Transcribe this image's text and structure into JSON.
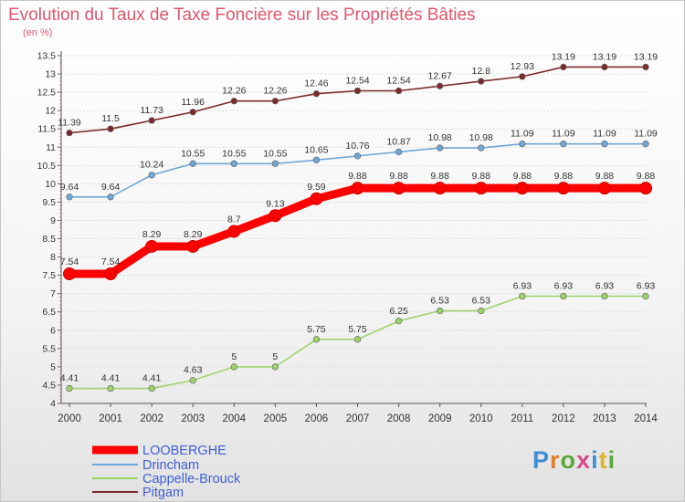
{
  "title": "Evolution du Taux de Taxe Foncière sur les Propriétés Bâties",
  "unit": "(en %)",
  "logo": [
    "P",
    "r",
    "o",
    "x",
    "i",
    "t",
    "i"
  ],
  "chart_data": {
    "type": "line",
    "x": [
      "2000",
      "2001",
      "2002",
      "2003",
      "2004",
      "2005",
      "2006",
      "2007",
      "2008",
      "2009",
      "2010",
      "2011",
      "2012",
      "2013",
      "2014"
    ],
    "ylim": [
      4,
      13.5
    ],
    "yticks": [
      "4",
      "4.5",
      "5",
      "5.5",
      "6",
      "6.5",
      "7",
      "7.5",
      "8",
      "8.5",
      "9",
      "9.5",
      "10",
      "10.5",
      "11",
      "11.5",
      "12",
      "12.5",
      "13",
      "13.5"
    ],
    "legend_position": "bottom-left",
    "series": [
      {
        "name": "LOOBERGHE",
        "color": "#ff0000",
        "values": [
          7.54,
          7.54,
          8.29,
          8.29,
          8.7,
          9.13,
          9.59,
          9.88,
          9.88,
          9.88,
          9.88,
          9.88,
          9.88,
          9.88,
          9.88
        ],
        "labels": [
          "7.54",
          "7.54",
          "8.29",
          "8.29",
          "8.7",
          "9.13",
          "9.59",
          "9.88",
          "9.88",
          "9.88",
          "9.88",
          "9.88",
          "9.88",
          "9.88",
          "9.88"
        ]
      },
      {
        "name": "Drincham",
        "color": "#6fa8d8",
        "values": [
          9.64,
          9.64,
          10.24,
          10.55,
          10.55,
          10.55,
          10.65,
          10.76,
          10.87,
          10.98,
          10.98,
          11.09,
          11.09,
          11.09,
          11.09
        ],
        "labels": [
          "9.64",
          "9.64",
          "10.24",
          "10.55",
          "10.55",
          "10.55",
          "10.65",
          "10.76",
          "10.87",
          "10.98",
          "10.98",
          "11.09",
          "11.09",
          "11.09",
          "11.09"
        ]
      },
      {
        "name": "Cappelle-Brouck",
        "color": "#9ed36b",
        "values": [
          4.41,
          4.41,
          4.41,
          4.63,
          5,
          5,
          5.75,
          5.75,
          6.25,
          6.53,
          6.53,
          6.93,
          6.93,
          6.93,
          6.93
        ],
        "labels": [
          "4.41",
          "4.41",
          "4.41",
          "4.63",
          "5",
          "5",
          "5.75",
          "5.75",
          "6.25",
          "6.53",
          "6.53",
          "6.93",
          "6.93",
          "6.93",
          "6.93"
        ]
      },
      {
        "name": "Pitgam",
        "color": "#7a2a2a",
        "values": [
          11.39,
          11.5,
          11.73,
          11.96,
          12.26,
          12.26,
          12.46,
          12.54,
          12.54,
          12.67,
          12.8,
          12.93,
          13.19,
          13.19,
          13.19
        ],
        "labels": [
          "11.39",
          "11.5",
          "11.73",
          "11.96",
          "12.26",
          "12.26",
          "12.46",
          "12.54",
          "12.54",
          "12.67",
          "12.8",
          "12.93",
          "13.19",
          "13.19",
          "13.19"
        ]
      }
    ]
  }
}
